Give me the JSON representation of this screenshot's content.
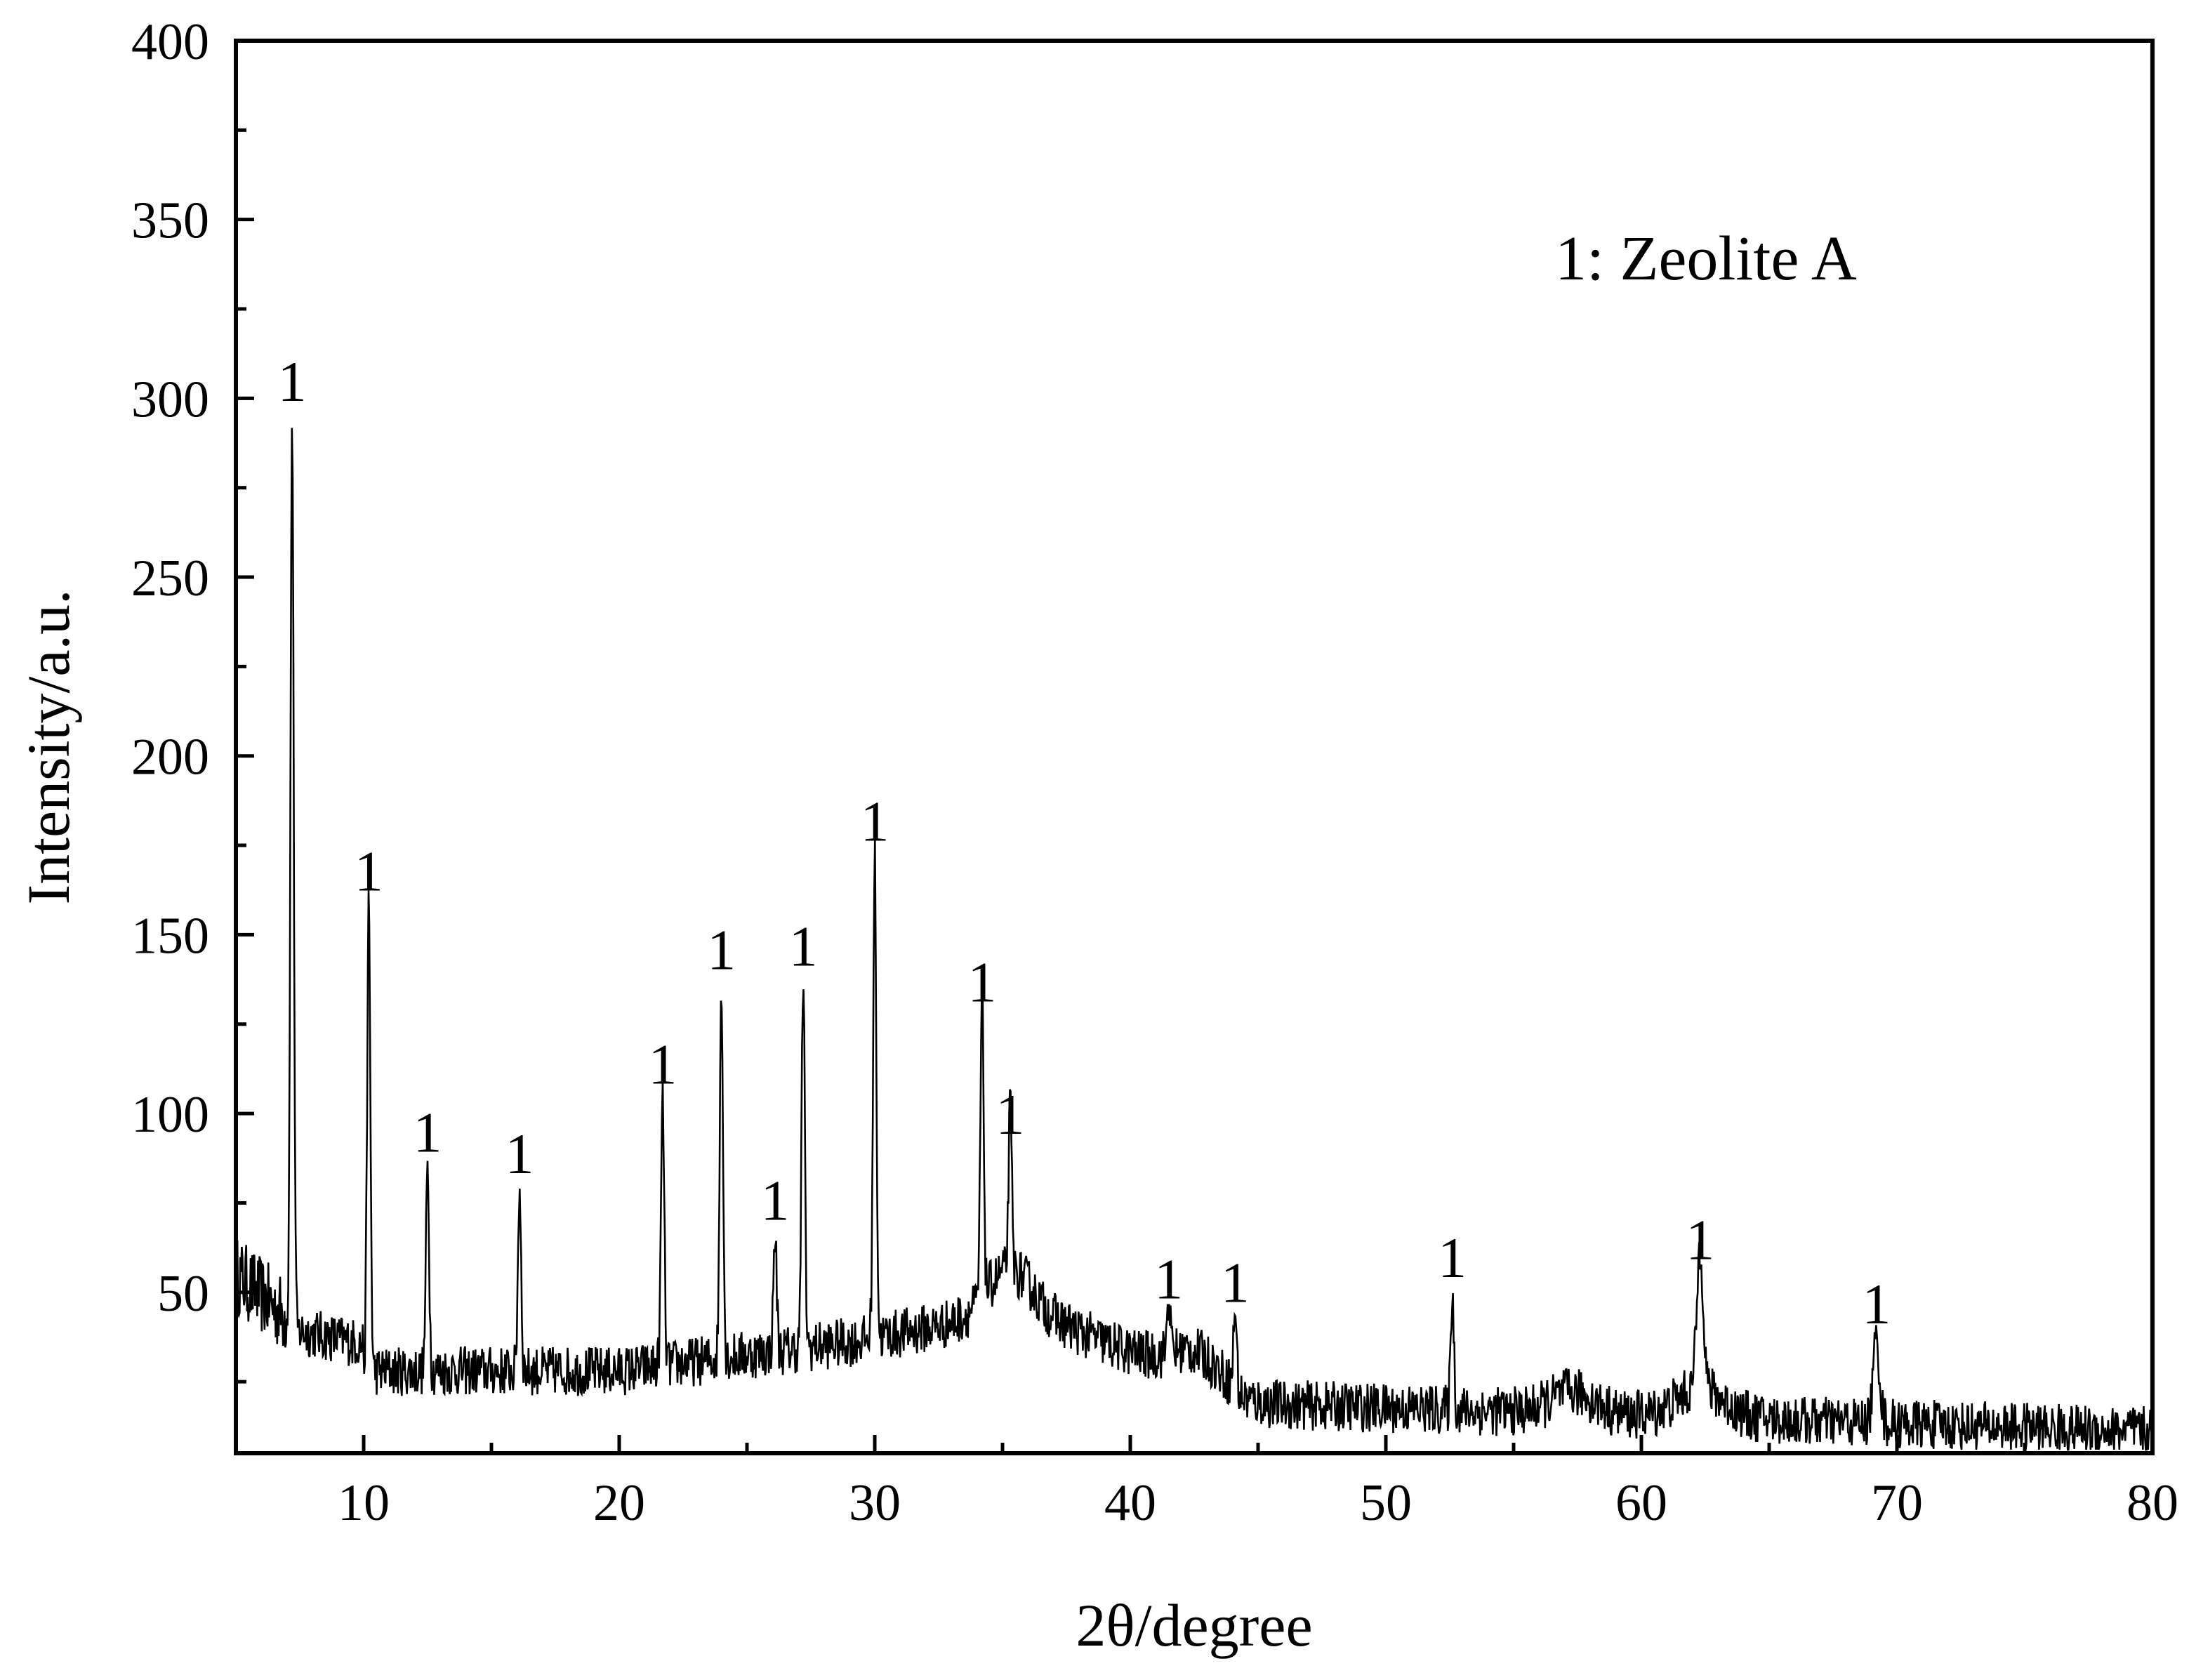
{
  "chart_data": {
    "type": "line",
    "title": "",
    "xlabel": "2θ/degree",
    "ylabel": "Intensity/a.u.",
    "xlim": [
      5,
      80
    ],
    "ylim": [
      5,
      400
    ],
    "x_ticks": [
      10,
      20,
      30,
      40,
      50,
      60,
      70,
      80
    ],
    "y_ticks": [
      50,
      100,
      150,
      200,
      250,
      300,
      350,
      400
    ],
    "grid": false,
    "legend_text": "1: Zeolite A",
    "legend_position": "top-right",
    "line_color": "#000000",
    "peaks": [
      {
        "x": 7.2,
        "y": 295,
        "label": "1"
      },
      {
        "x": 10.2,
        "y": 158,
        "label": "1"
      },
      {
        "x": 12.5,
        "y": 85,
        "label": "1"
      },
      {
        "x": 16.1,
        "y": 79,
        "label": "1"
      },
      {
        "x": 21.7,
        "y": 104,
        "label": "1"
      },
      {
        "x": 24.0,
        "y": 136,
        "label": "1"
      },
      {
        "x": 26.1,
        "y": 66,
        "label": "1"
      },
      {
        "x": 27.2,
        "y": 137,
        "label": "1"
      },
      {
        "x": 30.0,
        "y": 172,
        "label": "1"
      },
      {
        "x": 34.2,
        "y": 127,
        "label": "1"
      },
      {
        "x": 35.3,
        "y": 90,
        "label": "1"
      },
      {
        "x": 41.5,
        "y": 44,
        "label": "1"
      },
      {
        "x": 44.1,
        "y": 43,
        "label": "1"
      },
      {
        "x": 52.6,
        "y": 50,
        "label": "1"
      },
      {
        "x": 62.3,
        "y": 55,
        "label": "1"
      },
      {
        "x": 69.2,
        "y": 37,
        "label": "1"
      }
    ]
  }
}
